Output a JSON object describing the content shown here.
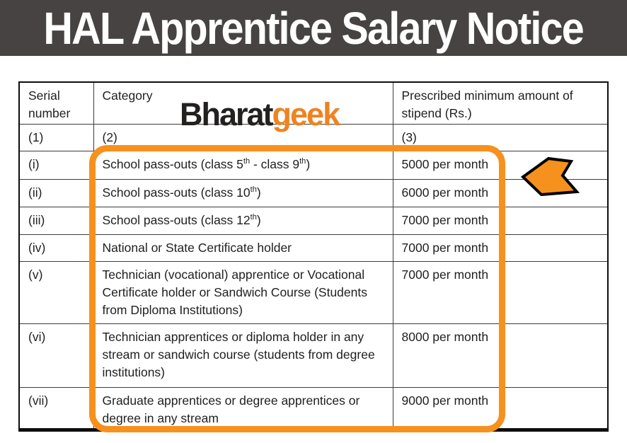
{
  "banner": {
    "title": "HAL Apprentice Salary Notice",
    "bg_color": "#474343",
    "text_color": "#ffffff"
  },
  "watermark": {
    "part1": "Bharat",
    "part2": "geek",
    "part1_color": "#232020",
    "part2_color": "#ee8322"
  },
  "annotations": {
    "highlight_color": "#f6911e",
    "arrow_fill": "#f6911e",
    "arrow_outline": "#000000",
    "arrow_direction": "left"
  },
  "table": {
    "headers": [
      "Serial number",
      "Category",
      "Prescribed minimum amount of stipend (Rs.)"
    ],
    "column_index_row": [
      "(1)",
      "(2)",
      "(3)"
    ],
    "rows": [
      {
        "serial": "(i)",
        "category_parts": [
          {
            "text": "School pass-outs (class 5",
            "sup": false
          },
          {
            "text": "th",
            "sup": true
          },
          {
            "text": " - class 9",
            "sup": false
          },
          {
            "text": "th",
            "sup": true
          },
          {
            "text": ")",
            "sup": false
          }
        ],
        "stipend": "5000 per month"
      },
      {
        "serial": "(ii)",
        "category_parts": [
          {
            "text": "School pass-outs (class 10",
            "sup": false
          },
          {
            "text": "th",
            "sup": true
          },
          {
            "text": ")",
            "sup": false
          }
        ],
        "stipend": "6000 per month"
      },
      {
        "serial": "(iii)",
        "category_parts": [
          {
            "text": "School pass-outs (class 12",
            "sup": false
          },
          {
            "text": "th",
            "sup": true
          },
          {
            "text": ")",
            "sup": false
          }
        ],
        "stipend": "7000 per month"
      },
      {
        "serial": "(iv)",
        "category_parts": [
          {
            "text": "National or State Certificate holder",
            "sup": false
          }
        ],
        "stipend": "7000 per month"
      },
      {
        "serial": "(v)",
        "category_parts": [
          {
            "text": "Technician (vocational) apprentice or Vocational Certificate holder or Sandwich Course (Students from Diploma Institutions)",
            "sup": false
          }
        ],
        "stipend": "7000 per month"
      },
      {
        "serial": "(vi)",
        "category_parts": [
          {
            "text": "Technician apprentices or diploma holder in any stream or sandwich course (students from degree institutions)",
            "sup": false
          }
        ],
        "stipend": "8000 per month"
      },
      {
        "serial": "(vii)",
        "category_parts": [
          {
            "text": "Graduate apprentices or degree apprentices or degree in any stream",
            "sup": false
          }
        ],
        "stipend": "9000 per month"
      }
    ]
  }
}
